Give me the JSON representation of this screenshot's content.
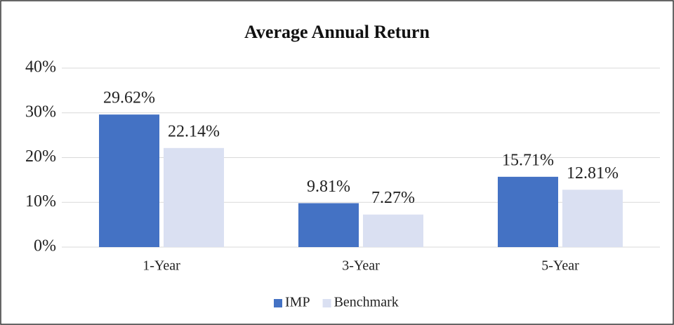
{
  "chart_data": {
    "type": "bar",
    "title": "Average Annual Return",
    "categories": [
      "1-Year",
      "3-Year",
      "5-Year"
    ],
    "series": [
      {
        "name": "IMP",
        "color": "#4472c4",
        "values": [
          29.62,
          9.81,
          15.71
        ],
        "value_labels": [
          "29.62%",
          "9.81%",
          "15.71%"
        ]
      },
      {
        "name": "Benchmark",
        "color": "#dae0f2",
        "values": [
          22.14,
          7.27,
          12.81
        ],
        "value_labels": [
          "22.14%",
          "7.27%",
          "12.81%"
        ]
      }
    ],
    "ylim": [
      0,
      40
    ],
    "yticks": [
      {
        "value": 0,
        "label": "0%"
      },
      {
        "value": 10,
        "label": "10%"
      },
      {
        "value": 20,
        "label": "20%"
      },
      {
        "value": 30,
        "label": "30%"
      },
      {
        "value": 40,
        "label": "40%"
      }
    ],
    "grid": true,
    "legend": "bottom"
  }
}
